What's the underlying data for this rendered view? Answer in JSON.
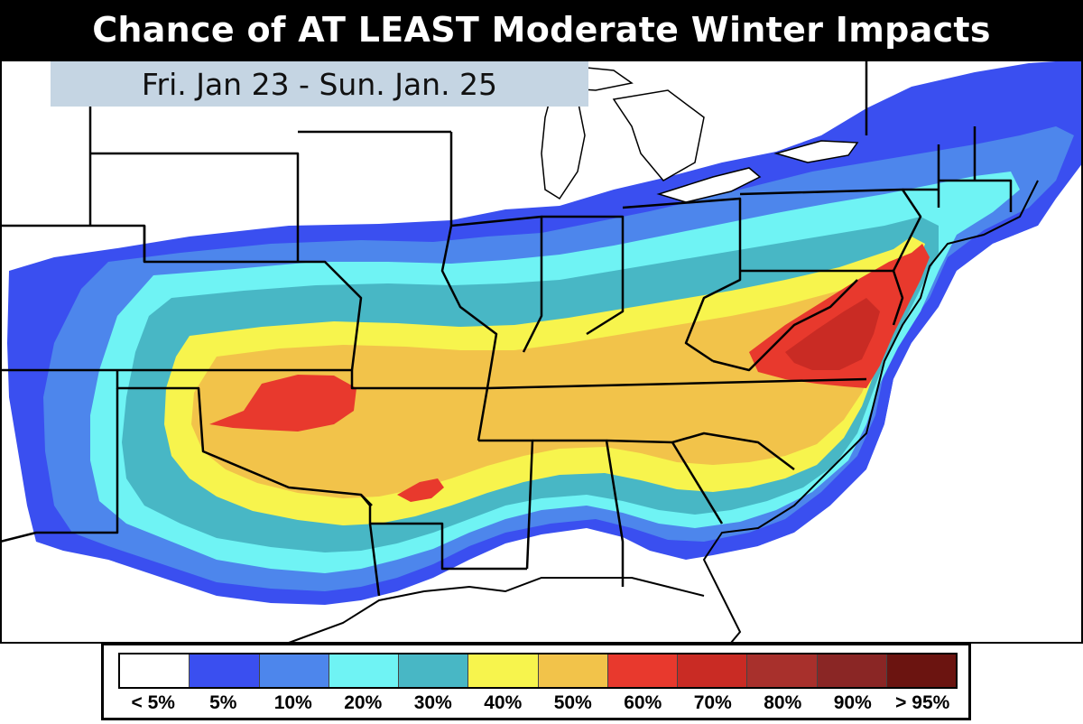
{
  "title": "Chance of AT LEAST Moderate Winter Impacts",
  "date_range": "Fri. Jan 23 - Sun. Jan. 25",
  "colors": {
    "none": "#ffffff",
    "p5": "#3a4ff0",
    "p10": "#4d86ec",
    "p20": "#6ff3f4",
    "p30": "#48b7c5",
    "p40": "#f7f44d",
    "p50": "#f2c34a",
    "p60": "#e8392d",
    "p70": "#c92b24",
    "p80": "#a8302c",
    "p90": "#8a2625",
    "p95": "#6b1410",
    "water": "#ffffff",
    "border": "#000000"
  },
  "legend": {
    "items": [
      {
        "label": "< 5%",
        "color": "#ffffff"
      },
      {
        "label": "5%",
        "color": "#3a4ff0"
      },
      {
        "label": "10%",
        "color": "#4d86ec"
      },
      {
        "label": "20%",
        "color": "#6ff3f4"
      },
      {
        "label": "30%",
        "color": "#48b7c5"
      },
      {
        "label": "40%",
        "color": "#f7f44d"
      },
      {
        "label": "50%",
        "color": "#f2c34a"
      },
      {
        "label": "60%",
        "color": "#e8392d"
      },
      {
        "label": "70%",
        "color": "#c92b24"
      },
      {
        "label": "80%",
        "color": "#a8302c"
      },
      {
        "label": "90%",
        "color": "#8a2625"
      },
      {
        "label": "> 95%",
        "color": "#6b1410"
      }
    ]
  }
}
